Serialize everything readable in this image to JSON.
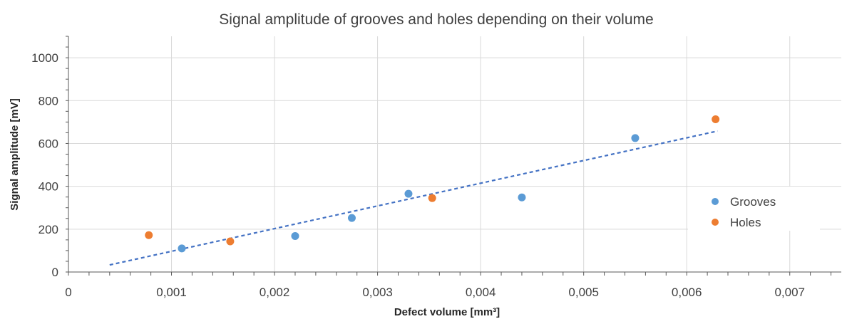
{
  "chart_data": {
    "type": "scatter",
    "title": "Signal amplitude of grooves and holes depending on their volume",
    "xlabel": "Defect volume [mm³]",
    "ylabel": "Signal amplitude [mV]",
    "xlim": [
      0,
      0.0075
    ],
    "ylim": [
      0,
      1100
    ],
    "x_ticks": [
      0,
      0.001,
      0.002,
      0.003,
      0.004,
      0.005,
      0.006,
      0.007
    ],
    "x_tick_labels": [
      "0",
      "0,001",
      "0,002",
      "0,003",
      "0,004",
      "0,005",
      "0,006",
      "0,007"
    ],
    "y_ticks": [
      0,
      200,
      400,
      600,
      800,
      1000
    ],
    "y_tick_labels": [
      "0",
      "200",
      "400",
      "600",
      "800",
      "1000"
    ],
    "grid": "vertical and horizontal major gridlines",
    "legend_position": "right",
    "series": [
      {
        "name": "Grooves",
        "color": "#5b9bd5",
        "points": [
          {
            "x": 0.0011,
            "y": 110
          },
          {
            "x": 0.0022,
            "y": 168
          },
          {
            "x": 0.00275,
            "y": 252
          },
          {
            "x": 0.0033,
            "y": 365
          },
          {
            "x": 0.0044,
            "y": 348
          },
          {
            "x": 0.0055,
            "y": 625
          }
        ]
      },
      {
        "name": "Holes",
        "color": "#ed7d31",
        "points": [
          {
            "x": 0.00078,
            "y": 172
          },
          {
            "x": 0.00157,
            "y": 143
          },
          {
            "x": 0.00353,
            "y": 345
          },
          {
            "x": 0.00628,
            "y": 713
          }
        ]
      }
    ],
    "trendline": {
      "style": "dashed",
      "color": "#4472c4",
      "from": {
        "x": 0.0004,
        "y": 33
      },
      "to": {
        "x": 0.0063,
        "y": 658
      }
    }
  }
}
